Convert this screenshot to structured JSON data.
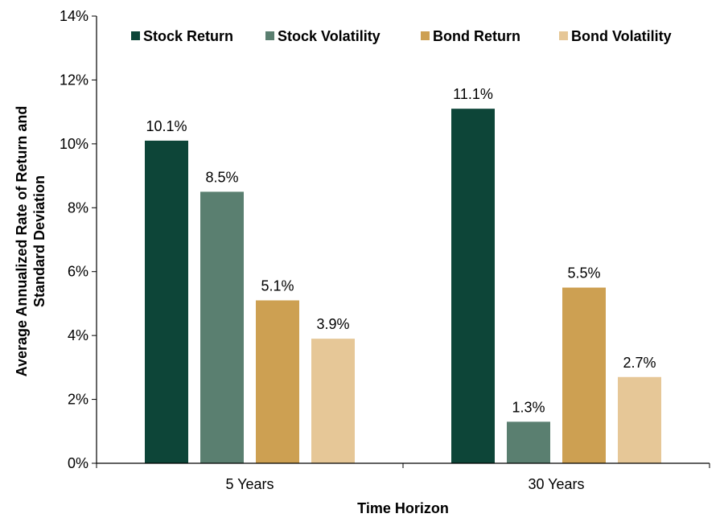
{
  "chart_data": {
    "type": "bar",
    "categories": [
      "5 Years",
      "30 Years"
    ],
    "series": [
      {
        "name": "Stock Return",
        "color": "#0d4538",
        "values": [
          10.1,
          11.1
        ],
        "labels": [
          "10.1%",
          "11.1%"
        ]
      },
      {
        "name": "Stock Volatility",
        "color": "#5a7f70",
        "values": [
          8.5,
          1.3
        ],
        "labels": [
          "8.5%",
          "1.3%"
        ]
      },
      {
        "name": "Bond Return",
        "color": "#cda052",
        "values": [
          5.1,
          5.5
        ],
        "labels": [
          "5.1%",
          "5.5%"
        ]
      },
      {
        "name": "Bond Volatility",
        "color": "#e6c797",
        "values": [
          3.9,
          2.7
        ],
        "labels": [
          "3.9%",
          "2.7%"
        ]
      }
    ],
    "xlabel": "Time Horizon",
    "ylabel_lines": [
      "Average Annualized Rate of Return and",
      "Standard Deviation"
    ],
    "ylim": [
      0,
      14
    ],
    "yticks": [
      0,
      2,
      4,
      6,
      8,
      10,
      12,
      14
    ],
    "ytick_labels": [
      "0%",
      "2%",
      "4%",
      "6%",
      "8%",
      "10%",
      "12%",
      "14%"
    ],
    "grid": false,
    "legend_position": "top"
  }
}
